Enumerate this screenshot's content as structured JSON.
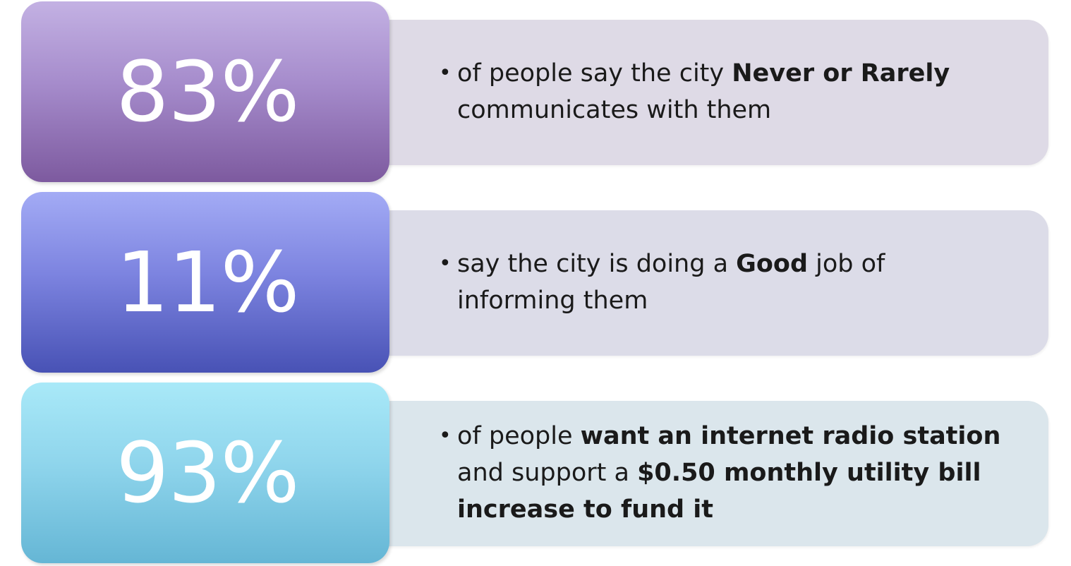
{
  "stats": [
    {
      "value": "83%",
      "bullet": "•",
      "segments": [
        {
          "text": "of people say the city ",
          "bold": false
        },
        {
          "text": "Never or Rarely",
          "bold": true
        },
        {
          "text": " communicates with them",
          "bold": false
        }
      ]
    },
    {
      "value": "11%",
      "bullet": "•",
      "segments": [
        {
          "text": "say the city is doing a ",
          "bold": false
        },
        {
          "text": "Good",
          "bold": true
        },
        {
          "text": " job of informing them",
          "bold": false
        }
      ]
    },
    {
      "value": "93%",
      "bullet": "•",
      "segments": [
        {
          "text": "of people ",
          "bold": false
        },
        {
          "text": "want an internet radio station",
          "bold": true
        },
        {
          "text": " and support a ",
          "bold": false
        },
        {
          "text": "$0.50 monthly utility bill increase to fund it",
          "bold": true
        }
      ]
    }
  ]
}
